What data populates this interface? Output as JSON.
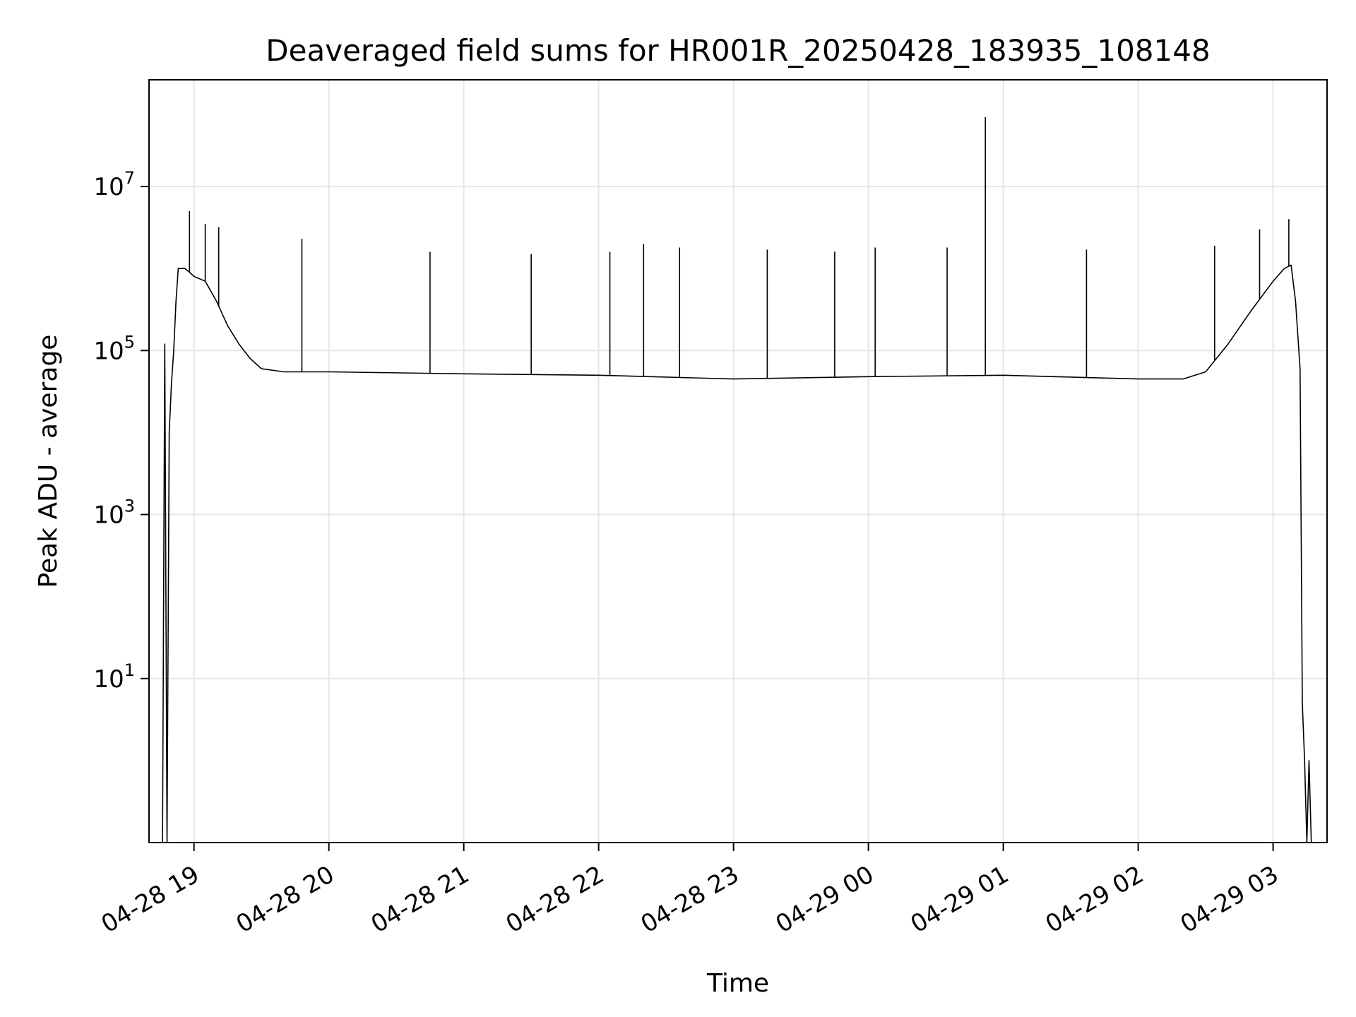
{
  "chart_data": {
    "type": "line",
    "title": "Deaveraged field sums for HR001R_20250428_183935_108148",
    "xlabel": "Time",
    "ylabel": "Peak ADU - average",
    "xscale": "time",
    "yscale": "log",
    "grid": true,
    "line_color": "#000000",
    "grid_color": "#e6e6e6",
    "xlim": [
      "2025-04-28 18:40",
      "2025-04-29 03:24"
    ],
    "ylim": [
      0.1,
      200000000
    ],
    "x_ticks": [
      {
        "value": "2025-04-28 19:00",
        "label": "04-28 19"
      },
      {
        "value": "2025-04-28 20:00",
        "label": "04-28 20"
      },
      {
        "value": "2025-04-28 21:00",
        "label": "04-28 21"
      },
      {
        "value": "2025-04-28 22:00",
        "label": "04-28 22"
      },
      {
        "value": "2025-04-28 23:00",
        "label": "04-28 23"
      },
      {
        "value": "2025-04-29 00:00",
        "label": "04-29 00"
      },
      {
        "value": "2025-04-29 01:00",
        "label": "04-29 01"
      },
      {
        "value": "2025-04-29 02:00",
        "label": "04-29 02"
      },
      {
        "value": "2025-04-29 03:00",
        "label": "04-29 03"
      }
    ],
    "y_ticks": [
      {
        "value": 10,
        "base": "10",
        "exp": "1"
      },
      {
        "value": 1000,
        "base": "10",
        "exp": "3"
      },
      {
        "value": 100000,
        "base": "10",
        "exp": "5"
      },
      {
        "value": 10000000,
        "base": "10",
        "exp": "7"
      }
    ],
    "series": [
      {
        "x": [
          "2025-04-28 18:46",
          "2025-04-28 18:47",
          "2025-04-28 18:48",
          "2025-04-28 18:49",
          "2025-04-28 18:50",
          "2025-04-28 18:51",
          "2025-04-28 18:52",
          "2025-04-28 18:53",
          "2025-04-28 18:54",
          "2025-04-28 18:56",
          "2025-04-28 18:58",
          "2025-04-28 19:00",
          "2025-04-28 19:05",
          "2025-04-28 19:10",
          "2025-04-28 19:15",
          "2025-04-28 19:20",
          "2025-04-28 19:25",
          "2025-04-28 19:30",
          "2025-04-28 19:40",
          "2025-04-28 20:00",
          "2025-04-28 21:00",
          "2025-04-28 22:00",
          "2025-04-28 23:00",
          "2025-04-29 00:00",
          "2025-04-29 01:00",
          "2025-04-29 02:00",
          "2025-04-29 02:20",
          "2025-04-29 02:30",
          "2025-04-29 02:40",
          "2025-04-29 02:50",
          "2025-04-29 03:00",
          "2025-04-29 03:05",
          "2025-04-29 03:08",
          "2025-04-29 03:10",
          "2025-04-29 03:12",
          "2025-04-29 03:13",
          "2025-04-29 03:14",
          "2025-04-29 03:15",
          "2025-04-29 03:16",
          "2025-04-29 03:17"
        ],
        "y": [
          0.1,
          120000,
          0.1,
          10000,
          40000,
          100000,
          400000,
          1000000,
          1000000,
          1000000,
          900000,
          800000,
          700000,
          400000,
          200000,
          120000,
          80000,
          60000,
          55000,
          55000,
          52000,
          50000,
          45000,
          48000,
          50000,
          45000,
          45000,
          55000,
          120000,
          300000,
          700000,
          1000000,
          1100000,
          400000,
          60000,
          5,
          1,
          0.1,
          1,
          0.1
        ]
      }
    ],
    "spikes": [
      {
        "x": "2025-04-28 18:58",
        "y": 5000000
      },
      {
        "x": "2025-04-28 19:05",
        "y": 3500000
      },
      {
        "x": "2025-04-28 19:11",
        "y": 3200000
      },
      {
        "x": "2025-04-28 19:48",
        "y": 2300000
      },
      {
        "x": "2025-04-28 20:45",
        "y": 1600000
      },
      {
        "x": "2025-04-28 21:30",
        "y": 1500000
      },
      {
        "x": "2025-04-28 22:05",
        "y": 1600000
      },
      {
        "x": "2025-04-28 22:20",
        "y": 2000000
      },
      {
        "x": "2025-04-28 22:36",
        "y": 1800000
      },
      {
        "x": "2025-04-28 23:15",
        "y": 1700000
      },
      {
        "x": "2025-04-28 23:45",
        "y": 1600000
      },
      {
        "x": "2025-04-29 00:03",
        "y": 1800000
      },
      {
        "x": "2025-04-29 00:35",
        "y": 1800000
      },
      {
        "x": "2025-04-29 00:52",
        "y": 70000000
      },
      {
        "x": "2025-04-29 01:37",
        "y": 1700000
      },
      {
        "x": "2025-04-29 02:34",
        "y": 1900000
      },
      {
        "x": "2025-04-29 02:54",
        "y": 3000000
      },
      {
        "x": "2025-04-29 03:07",
        "y": 4000000
      }
    ]
  }
}
